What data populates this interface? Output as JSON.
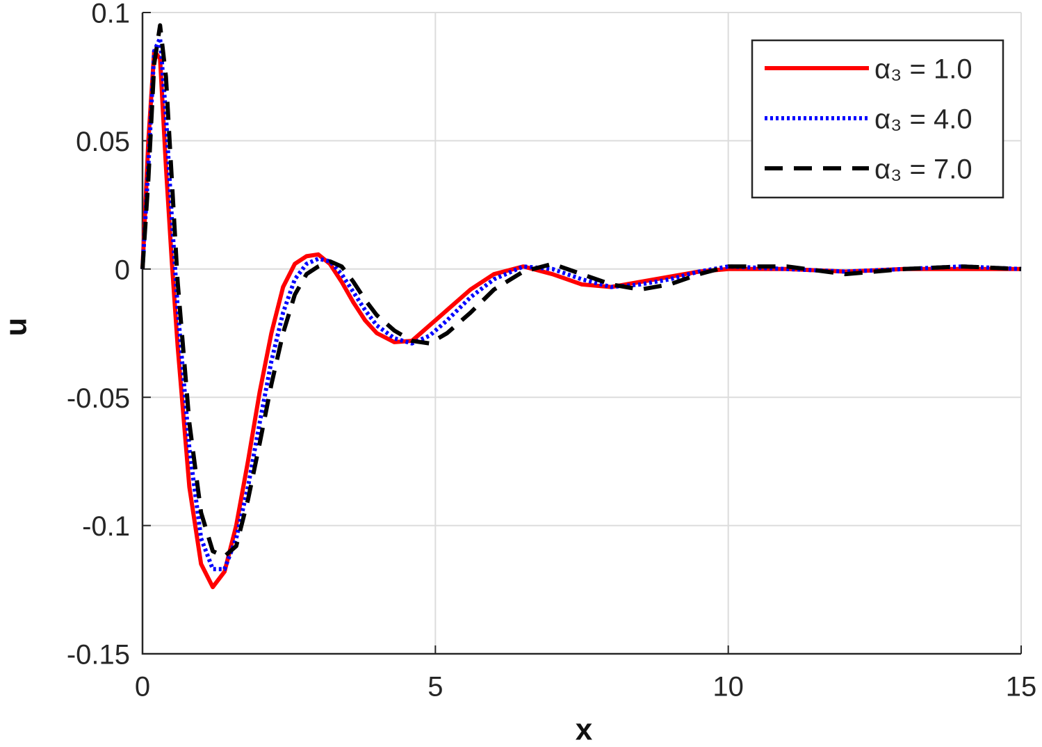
{
  "chart_data": {
    "type": "line",
    "xlabel": "x",
    "ylabel": "u",
    "x": [
      0,
      0.1,
      0.2,
      0.3,
      0.4,
      0.5,
      0.6,
      0.8,
      1.0,
      1.2,
      1.4,
      1.6,
      1.8,
      2.0,
      2.2,
      2.4,
      2.6,
      2.8,
      3.0,
      3.2,
      3.4,
      3.6,
      3.8,
      4.0,
      4.3,
      4.6,
      4.9,
      5.2,
      5.6,
      6.0,
      6.5,
      7.0,
      7.5,
      8.0,
      8.5,
      9.0,
      9.5,
      10,
      11,
      12,
      13,
      14,
      15
    ],
    "series": [
      {
        "name": "α₃ = 1.0",
        "color": "#ff0000",
        "style": "solid",
        "values": [
          0,
          0.05,
          0.085,
          0.082,
          0.04,
          0.003,
          -0.03,
          -0.085,
          -0.115,
          -0.124,
          -0.118,
          -0.1,
          -0.075,
          -0.048,
          -0.025,
          -0.007,
          0.002,
          0.005,
          0.0057,
          0.002,
          -0.005,
          -0.013,
          -0.02,
          -0.025,
          -0.0285,
          -0.028,
          -0.022,
          -0.016,
          -0.008,
          -0.002,
          0.001,
          -0.002,
          -0.006,
          -0.007,
          -0.005,
          -0.003,
          -0.001,
          0,
          0,
          -0.001,
          0,
          0,
          0
        ]
      },
      {
        "name": "α₃ = 4.0",
        "color": "#0000ff",
        "style": "dotted",
        "values": [
          0,
          0.04,
          0.085,
          0.09,
          0.06,
          0.02,
          -0.015,
          -0.07,
          -0.105,
          -0.117,
          -0.117,
          -0.105,
          -0.085,
          -0.06,
          -0.036,
          -0.017,
          -0.004,
          0.002,
          0.004,
          0.003,
          -0.002,
          -0.009,
          -0.016,
          -0.022,
          -0.027,
          -0.029,
          -0.026,
          -0.02,
          -0.011,
          -0.004,
          0.001,
          0,
          -0.004,
          -0.007,
          -0.006,
          -0.004,
          -0.001,
          0.001,
          0,
          -0.001,
          0,
          0.001,
          0
        ]
      },
      {
        "name": "α₃ = 7.0",
        "color": "#000000",
        "style": "dashed",
        "values": [
          0,
          0.035,
          0.08,
          0.095,
          0.075,
          0.035,
          -0.005,
          -0.06,
          -0.095,
          -0.11,
          -0.112,
          -0.108,
          -0.09,
          -0.068,
          -0.045,
          -0.025,
          -0.01,
          -0.002,
          0.001,
          0.003,
          0.001,
          -0.005,
          -0.012,
          -0.018,
          -0.024,
          -0.028,
          -0.029,
          -0.025,
          -0.017,
          -0.008,
          -0.001,
          0.002,
          -0.002,
          -0.006,
          -0.008,
          -0.006,
          -0.002,
          0.001,
          0.001,
          -0.002,
          0,
          0.001,
          0
        ]
      }
    ],
    "xlim": [
      0,
      15
    ],
    "xticks": [
      0,
      5,
      10,
      15
    ],
    "ylim": [
      -0.15,
      0.1
    ],
    "yticks": [
      -0.15,
      -0.1,
      -0.05,
      0,
      0.05,
      0.1
    ],
    "grid": true,
    "legend": "top-right"
  }
}
